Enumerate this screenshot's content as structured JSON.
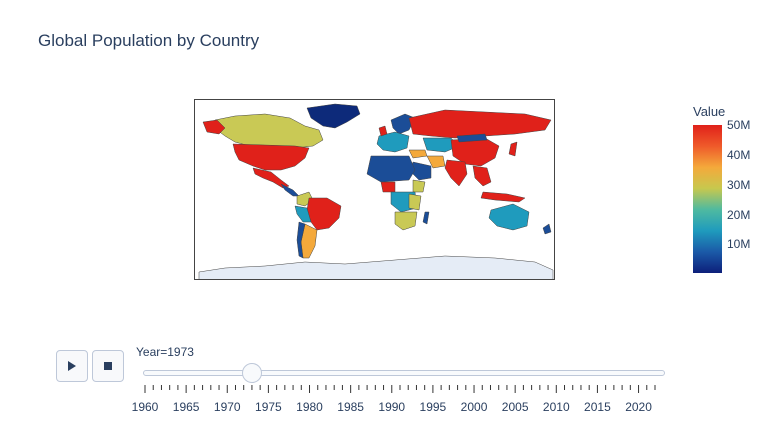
{
  "title": "Global Population by Country",
  "colorbar": {
    "title": "Value",
    "ticks": [
      "10M",
      "20M",
      "30M",
      "40M",
      "50M"
    ],
    "colors": [
      "#0d1f7a",
      "#1b5aa8",
      "#1f9bbd",
      "#4fbaa0",
      "#c7c84e",
      "#f4a93b",
      "#ef5a2a",
      "#e0211a"
    ]
  },
  "controls": {
    "play_icon": "play-icon",
    "stop_icon": "stop-icon"
  },
  "slider": {
    "label": "Year=1973",
    "value": 1973,
    "min": 1960,
    "max": 2022,
    "labels": [
      "1960",
      "1965",
      "1970",
      "1975",
      "1980",
      "1985",
      "1990",
      "1995",
      "2000",
      "2005",
      "2010",
      "2015",
      "2020"
    ]
  },
  "map": {
    "projection": "equirectangular",
    "land_colors": {
      "high": "#e0211a",
      "mid_high": "#f4a93b",
      "mid": "#c9c955",
      "mid_low": "#1f9bbd",
      "low": "#1b4d97",
      "lowest": "#0d2a7a",
      "antarctica": "#e5ecf6"
    }
  }
}
